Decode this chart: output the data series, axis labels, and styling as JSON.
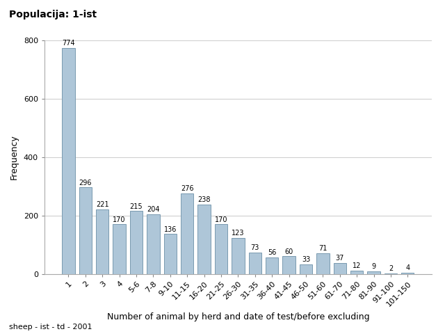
{
  "title": "Populacija: 1-ist",
  "xlabel": "Number of animal by herd and date of test/before excluding",
  "ylabel": "Frequency",
  "footnote": "sheep - ist - td - 2001",
  "categories": [
    "1",
    "2",
    "3",
    "4",
    "5-6",
    "7-8",
    "9-10",
    "11-15",
    "16-20",
    "21-25",
    "26-30",
    "31-35",
    "36-40",
    "41-45",
    "46-50",
    "51-60",
    "61-70",
    "71-80",
    "81-90",
    "91-100",
    "101-150"
  ],
  "values": [
    774,
    296,
    221,
    170,
    215,
    204,
    136,
    276,
    238,
    170,
    123,
    73,
    56,
    60,
    33,
    71,
    37,
    12,
    9,
    2,
    4
  ],
  "bar_color": "#aec6d8",
  "bar_edge_color": "#7a9ab0",
  "ylim": [
    0,
    800
  ],
  "yticks": [
    0,
    200,
    400,
    600,
    800
  ],
  "background_color": "#ffffff",
  "plot_bg_color": "#ffffff",
  "grid_color": "#d0d0d0",
  "title_fontsize": 10,
  "label_fontsize": 9,
  "tick_fontsize": 8,
  "value_label_fontsize": 7,
  "footnote_fontsize": 8
}
